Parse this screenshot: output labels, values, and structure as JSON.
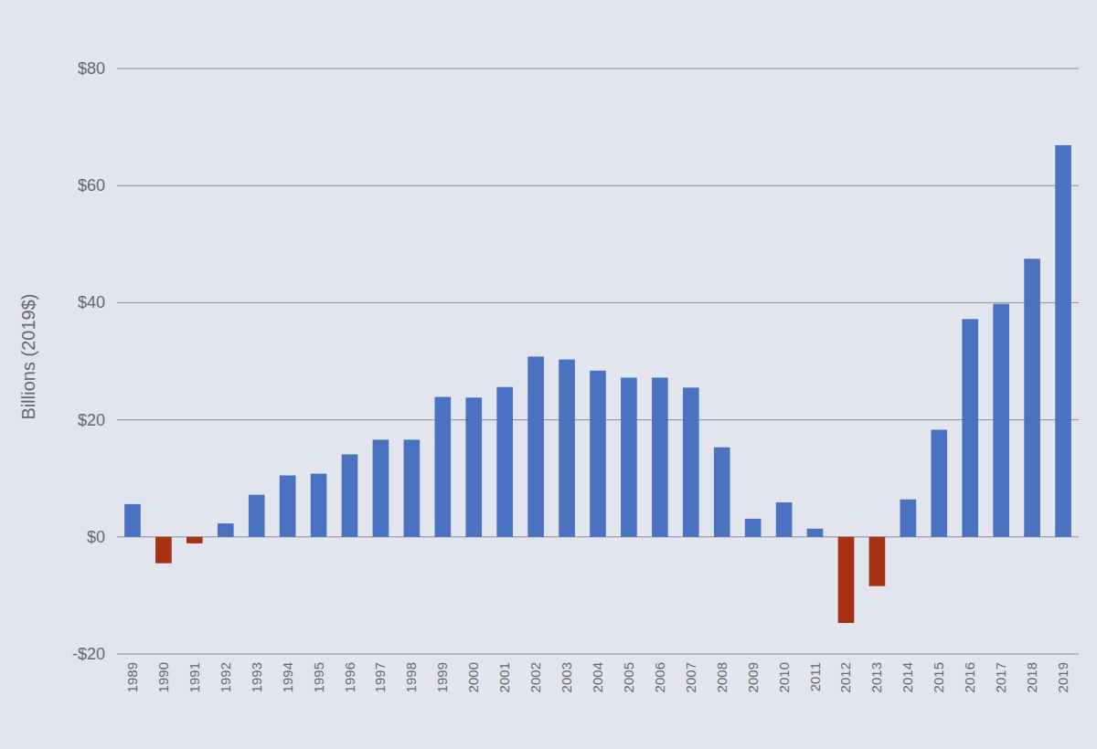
{
  "chart_data": {
    "type": "bar",
    "y_label": "Billions (2019$)",
    "categories": [
      "1989",
      "1990",
      "1991",
      "1992",
      "1993",
      "1994",
      "1995",
      "1996",
      "1997",
      "1998",
      "1999",
      "2000",
      "2001",
      "2002",
      "2003",
      "2004",
      "2005",
      "2006",
      "2007",
      "2008",
      "2009",
      "2010",
      "2011",
      "2012",
      "2013",
      "2014",
      "2015",
      "2016",
      "2017",
      "2018",
      "2019"
    ],
    "values": [
      5.6,
      -4.5,
      -1.1,
      2.3,
      7.2,
      10.5,
      10.8,
      14.1,
      16.6,
      16.6,
      23.9,
      23.8,
      25.6,
      30.8,
      30.3,
      28.4,
      27.2,
      27.2,
      25.5,
      15.3,
      3.1,
      5.9,
      1.4,
      -14.7,
      -8.4,
      6.4,
      18.3,
      37.2,
      39.8,
      47.5,
      66.9
    ],
    "colors": [
      "#4a72c0",
      "#a63214",
      "#a63214",
      "#4a72c0",
      "#4a72c0",
      "#4a72c0",
      "#4a72c0",
      "#4a72c0",
      "#4a72c0",
      "#4a72c0",
      "#4a72c0",
      "#4a72c0",
      "#4a72c0",
      "#4a72c0",
      "#4a72c0",
      "#4a72c0",
      "#4a72c0",
      "#4a72c0",
      "#4a72c0",
      "#4a72c0",
      "#4a72c0",
      "#4a72c0",
      "#4a72c0",
      "#a63214",
      "#a63214",
      "#4a72c0",
      "#4a72c0",
      "#4a72c0",
      "#4a72c0",
      "#4a72c0",
      "#4a72c0"
    ],
    "ylim": [
      -20,
      80
    ],
    "yticks": [
      {
        "value": -20,
        "label": "-$20"
      },
      {
        "value": 0,
        "label": "$0"
      },
      {
        "value": 20,
        "label": "$20"
      },
      {
        "value": 40,
        "label": "$40"
      },
      {
        "value": 60,
        "label": "$60"
      },
      {
        "value": 80,
        "label": "$80"
      }
    ],
    "grid": true
  }
}
